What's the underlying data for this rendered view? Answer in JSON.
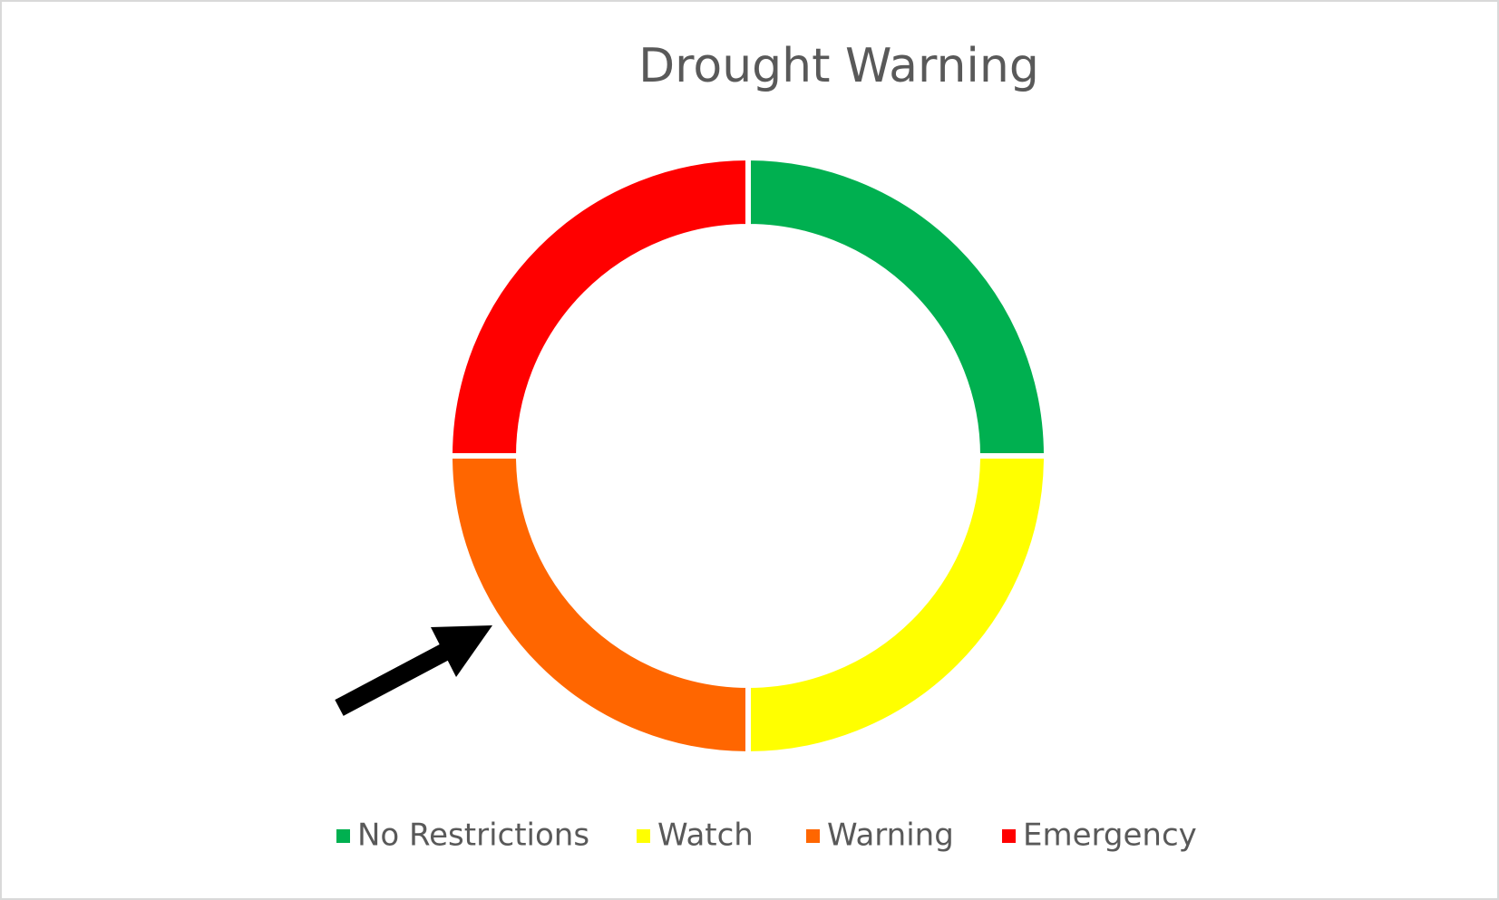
{
  "chart_data": {
    "type": "doughnut",
    "title": "Drought Warning",
    "categories": [
      "No Restrictions",
      "Watch",
      "Warning",
      "Emergency"
    ],
    "values": [
      25,
      25,
      25,
      25
    ],
    "colors": [
      "#00b050",
      "#ffff00",
      "#ff6600",
      "#ff0000"
    ],
    "legend": "bottom"
  }
}
